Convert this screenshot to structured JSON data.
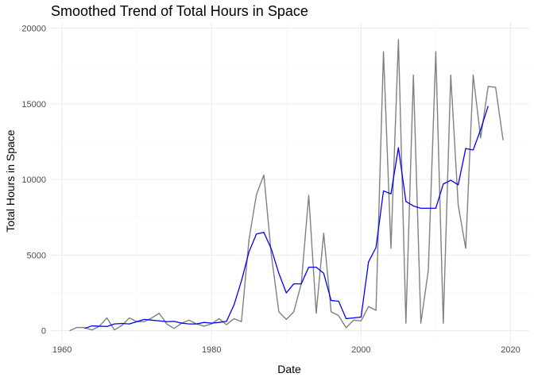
{
  "chart_data": {
    "type": "line",
    "title": "Smoothed Trend of Total Hours in Space",
    "xlabel": "Date",
    "ylabel": "Total Hours in Space",
    "xlim": [
      1958.5,
      2022.5
    ],
    "ylim": [
      -700,
      20400
    ],
    "xticks": [
      1960,
      1980,
      2000,
      2020
    ],
    "yticks": [
      0,
      5000,
      10000,
      15000,
      20000
    ],
    "grid": true,
    "series": [
      {
        "color": "#808080",
        "x": [
          1961,
          1962,
          1963,
          1964,
          1965,
          1966,
          1967,
          1968,
          1969,
          1970,
          1971,
          1972,
          1973,
          1974,
          1975,
          1976,
          1977,
          1978,
          1979,
          1980,
          1981,
          1982,
          1983,
          1984,
          1985,
          1986,
          1987,
          1988,
          1989,
          1990,
          1991,
          1992,
          1993,
          1994,
          1995,
          1996,
          1997,
          1998,
          1999,
          2000,
          2001,
          2002,
          2003,
          2004,
          2005,
          2006,
          2007,
          2008,
          2009,
          2010,
          2011,
          2012,
          2013,
          2014,
          2015,
          2016,
          2017,
          2018,
          2019
        ],
        "y": [
          0,
          220,
          200,
          50,
          300,
          850,
          50,
          350,
          850,
          600,
          600,
          850,
          1150,
          450,
          150,
          500,
          700,
          450,
          300,
          450,
          800,
          400,
          800,
          600,
          6000,
          9000,
          10300,
          5000,
          1250,
          750,
          1250,
          3100,
          8950,
          1150,
          6450,
          1250,
          1000,
          200,
          700,
          650,
          1600,
          1350,
          18450,
          5450,
          19250,
          500,
          16900,
          500,
          4000,
          18450,
          500,
          16900,
          8300,
          5450,
          16900,
          12750,
          16150,
          16100,
          12600
        ]
      },
      {
        "color": "#0000ff",
        "x": [
          1963,
          1964,
          1965,
          1966,
          1967,
          1968,
          1969,
          1970,
          1971,
          1972,
          1973,
          1974,
          1975,
          1976,
          1977,
          1978,
          1979,
          1980,
          1981,
          1982,
          1983,
          1984,
          1985,
          1986,
          1987,
          1988,
          1989,
          1990,
          1991,
          1992,
          1993,
          1994,
          1995,
          1996,
          1997,
          1998,
          1999,
          2000,
          2001,
          2002,
          2003,
          2004,
          2005,
          2006,
          2007,
          2008,
          2009,
          2010,
          2011,
          2012,
          2013,
          2014,
          2015,
          2016,
          2017
        ],
        "y": [
          150,
          320,
          300,
          280,
          450,
          480,
          450,
          600,
          750,
          700,
          650,
          600,
          620,
          500,
          450,
          450,
          550,
          500,
          550,
          620,
          1700,
          3300,
          5200,
          6400,
          6500,
          5400,
          3800,
          2500,
          3100,
          3100,
          4200,
          4200,
          3800,
          2000,
          1950,
          800,
          850,
          900,
          4550,
          5500,
          9250,
          9050,
          12100,
          8550,
          8250,
          8100,
          8100,
          8100,
          9700,
          9950,
          9650,
          12050,
          11950,
          13300,
          14850
        ]
      }
    ]
  }
}
